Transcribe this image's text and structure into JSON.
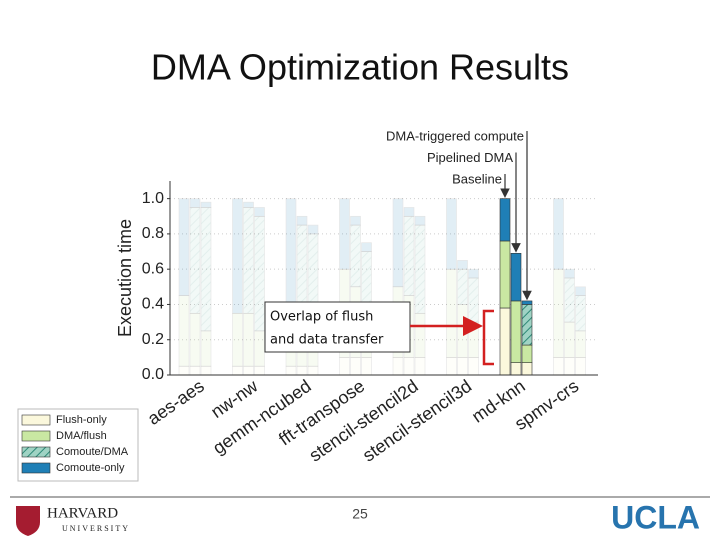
{
  "chart_data": {
    "type": "stacked-grouped-bar",
    "title": "DMA Optimization Results",
    "y_label": "Execution time",
    "categories": [
      "aes-aes",
      "nw-nw",
      "gemm-ncubed",
      "fft-transpose",
      "stencil-stencil2d",
      "stencil-stencil3d",
      "md-knn",
      "spmv-crs"
    ],
    "bar_labels": [
      "Baseline",
      "Pipelined DMA",
      "DMA-triggered compute"
    ],
    "highlight": 6,
    "series": [
      {
        "name": "Flush-only",
        "color": "#fbf8dc",
        "hatch": false,
        "values": [
          [
            0.05,
            0.05,
            0.05
          ],
          [
            0.05,
            0.05,
            0.05
          ],
          [
            0.05,
            0.05,
            0.05
          ],
          [
            0.1,
            0.1,
            0.1
          ],
          [
            0.1,
            0.1,
            0.1
          ],
          [
            0.1,
            0.1,
            0.1
          ],
          [
            0.38,
            0.07,
            0.07
          ],
          [
            0.1,
            0.1,
            0.1
          ]
        ]
      },
      {
        "name": "DMA/flush",
        "color": "#c9e8a2",
        "hatch": false,
        "values": [
          [
            0.4,
            0.3,
            0.2
          ],
          [
            0.3,
            0.3,
            0.2
          ],
          [
            0.3,
            0.25,
            0.2
          ],
          [
            0.5,
            0.4,
            0.2
          ],
          [
            0.4,
            0.35,
            0.25
          ],
          [
            0.5,
            0.3,
            0.2
          ],
          [
            0.38,
            0.35,
            0.1
          ],
          [
            0.5,
            0.2,
            0.15
          ]
        ]
      },
      {
        "name": "Comoute/DMA",
        "color": "#5fb3a3",
        "hatch": true,
        "values": [
          [
            0,
            0.6,
            0.7
          ],
          [
            0,
            0.6,
            0.65
          ],
          [
            0,
            0.55,
            0.55
          ],
          [
            0,
            0.35,
            0.4
          ],
          [
            0,
            0.45,
            0.5
          ],
          [
            0,
            0.2,
            0.25
          ],
          [
            0,
            0,
            0.23
          ],
          [
            0,
            0.25,
            0.2
          ]
        ]
      },
      {
        "name": "Comoute-only",
        "color": "#1f7fb6",
        "hatch": false,
        "values": [
          [
            0.55,
            0.05,
            0.03
          ],
          [
            0.65,
            0.03,
            0.05
          ],
          [
            0.65,
            0.05,
            0.05
          ],
          [
            0.4,
            0.05,
            0.05
          ],
          [
            0.5,
            0.05,
            0.05
          ],
          [
            0.4,
            0.05,
            0.05
          ],
          [
            0.24,
            0.27,
            0.02
          ],
          [
            0.4,
            0.05,
            0.05
          ]
        ]
      }
    ],
    "ylim": [
      0,
      1.1
    ],
    "yticks": [
      {
        "value": 0,
        "label": "0.0"
      },
      0.2,
      0.4,
      0.6,
      0.8,
      {
        "value": 1,
        "label": "1.0"
      }
    ],
    "grid": true
  },
  "annotation": {
    "lines": [
      "Overlap of flush",
      "and data transfer"
    ]
  },
  "footer": {
    "page_number": "25",
    "left_logo": [
      "HARVARD",
      "UNIVERSITY"
    ],
    "right_logo": "UCLA"
  }
}
